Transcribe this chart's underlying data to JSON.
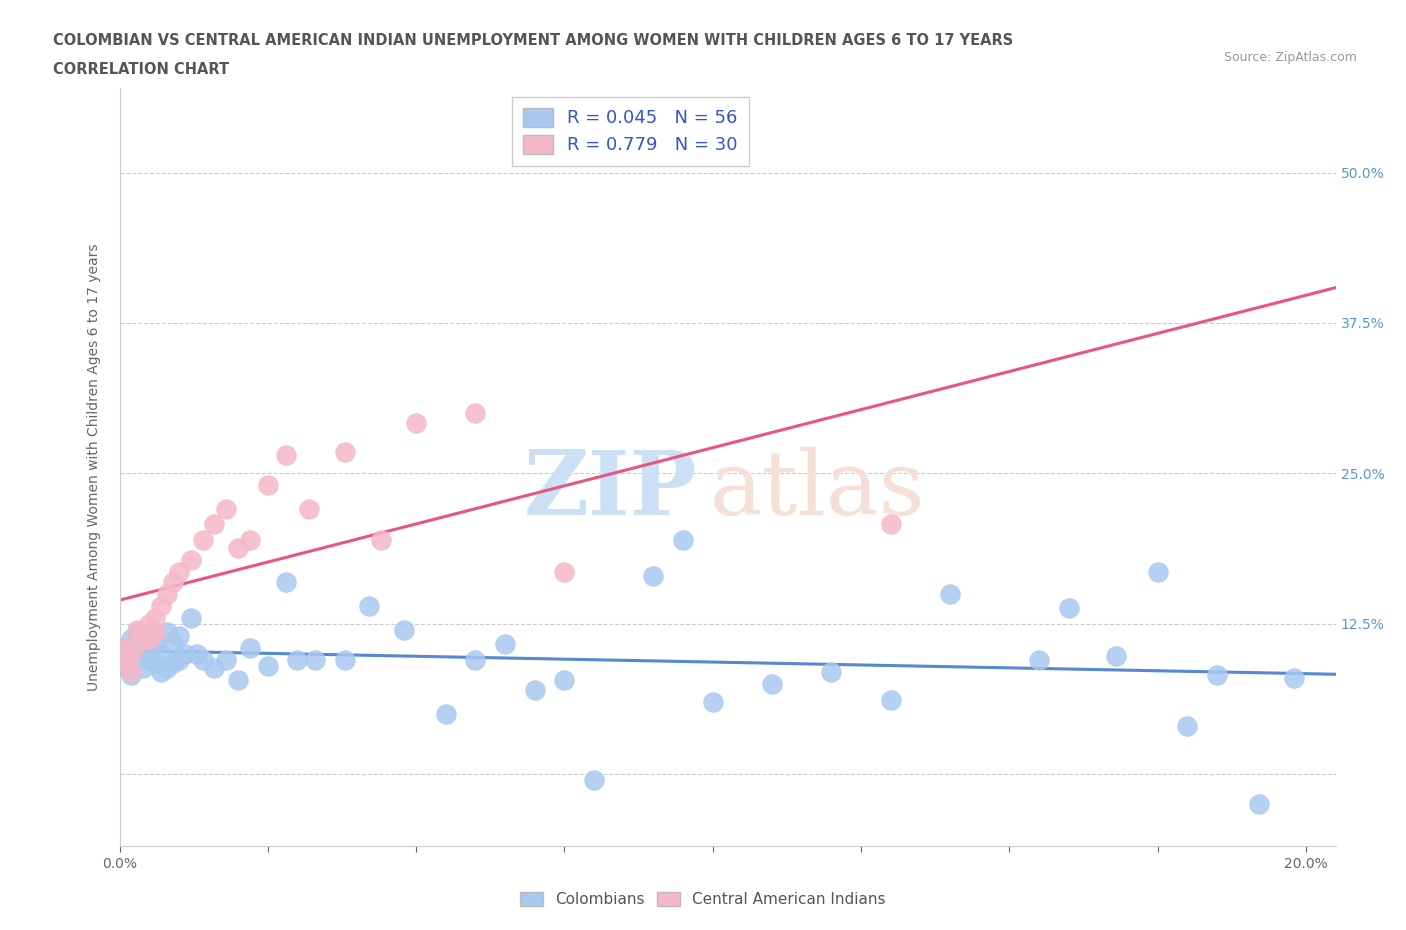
{
  "title_line1": "COLOMBIAN VS CENTRAL AMERICAN INDIAN UNEMPLOYMENT AMONG WOMEN WITH CHILDREN AGES 6 TO 17 YEARS",
  "title_line2": "CORRELATION CHART",
  "source_text": "Source: ZipAtlas.com",
  "ylabel": "Unemployment Among Women with Children Ages 6 to 17 years",
  "xlim": [
    0.0,
    0.205
  ],
  "ylim": [
    -0.06,
    0.57
  ],
  "ytick_positions": [
    0.0,
    0.125,
    0.25,
    0.375,
    0.5
  ],
  "ytick_labels": [
    "",
    "12.5%",
    "25.0%",
    "37.5%",
    "50.0%"
  ],
  "xtick_positions": [
    0.0,
    0.025,
    0.05,
    0.075,
    0.1,
    0.125,
    0.15,
    0.175,
    0.2
  ],
  "xtick_labels": [
    "0.0%",
    "",
    "",
    "",
    "",
    "",
    "",
    "",
    "20.0%"
  ],
  "colombian_color": "#a8c8f0",
  "central_american_color": "#f5b8c8",
  "colombian_line_color": "#5588cc",
  "central_american_line_color": "#e85580",
  "legend_text_color": "#3355cc",
  "watermark_zip_color": "#cce0f5",
  "watermark_atlas_color": "#f5e0d5",
  "colombian_x": [
    0.001,
    0.001,
    0.002,
    0.002,
    0.003,
    0.003,
    0.004,
    0.004,
    0.005,
    0.005,
    0.006,
    0.006,
    0.007,
    0.007,
    0.008,
    0.008,
    0.009,
    0.009,
    0.01,
    0.01,
    0.011,
    0.012,
    0.013,
    0.014,
    0.016,
    0.018,
    0.02,
    0.022,
    0.025,
    0.028,
    0.03,
    0.033,
    0.038,
    0.042,
    0.048,
    0.055,
    0.06,
    0.065,
    0.07,
    0.075,
    0.08,
    0.09,
    0.095,
    0.1,
    0.11,
    0.12,
    0.13,
    0.14,
    0.155,
    0.16,
    0.168,
    0.175,
    0.18,
    0.185,
    0.192,
    0.198
  ],
  "colombian_y": [
    0.09,
    0.105,
    0.082,
    0.112,
    0.098,
    0.118,
    0.088,
    0.102,
    0.095,
    0.115,
    0.092,
    0.108,
    0.085,
    0.1,
    0.088,
    0.118,
    0.092,
    0.11,
    0.095,
    0.115,
    0.1,
    0.13,
    0.1,
    0.095,
    0.088,
    0.095,
    0.078,
    0.105,
    0.09,
    0.16,
    0.095,
    0.095,
    0.095,
    0.14,
    0.12,
    0.05,
    0.095,
    0.108,
    0.07,
    0.078,
    -0.005,
    0.165,
    0.195,
    0.06,
    0.075,
    0.085,
    0.062,
    0.15,
    0.095,
    0.138,
    0.098,
    0.168,
    0.04,
    0.082,
    -0.025,
    0.08
  ],
  "central_x": [
    0.001,
    0.001,
    0.002,
    0.002,
    0.003,
    0.003,
    0.004,
    0.005,
    0.005,
    0.006,
    0.006,
    0.007,
    0.008,
    0.009,
    0.01,
    0.012,
    0.014,
    0.016,
    0.018,
    0.02,
    0.022,
    0.025,
    0.028,
    0.032,
    0.038,
    0.044,
    0.05,
    0.06,
    0.075,
    0.13
  ],
  "central_y": [
    0.092,
    0.105,
    0.085,
    0.098,
    0.108,
    0.12,
    0.118,
    0.112,
    0.125,
    0.118,
    0.13,
    0.14,
    0.15,
    0.16,
    0.168,
    0.178,
    0.195,
    0.208,
    0.22,
    0.188,
    0.195,
    0.24,
    0.265,
    0.22,
    0.268,
    0.195,
    0.292,
    0.3,
    0.168,
    0.208
  ],
  "background_color": "#ffffff",
  "grid_color": "#cccccc",
  "grid_style": "--"
}
